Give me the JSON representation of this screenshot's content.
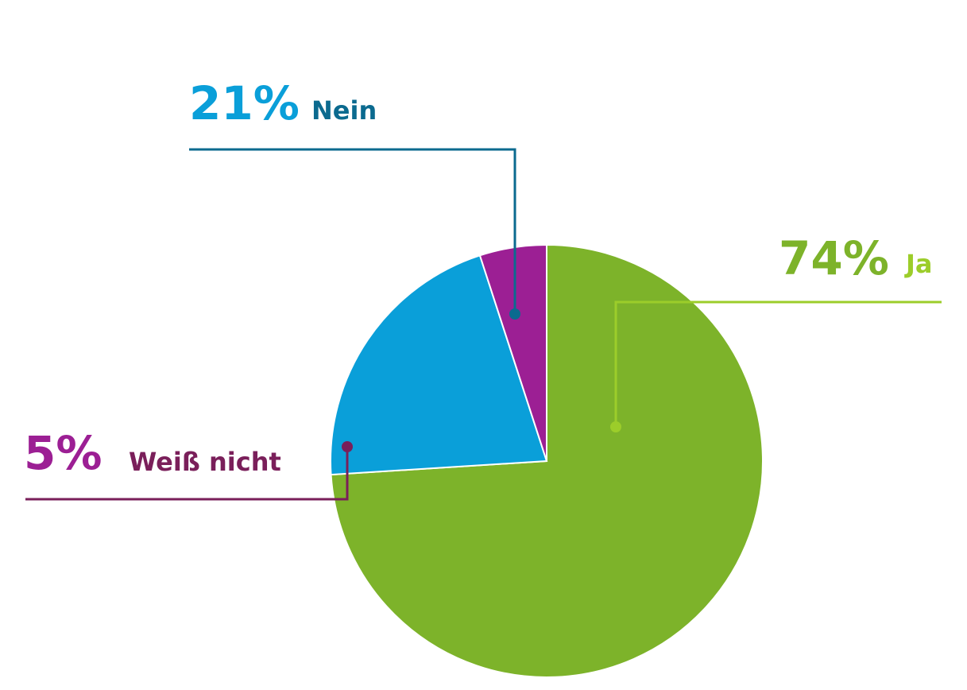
{
  "chart_data": {
    "type": "pie",
    "categories": [
      "Ja",
      "Nein",
      "Weiß nicht"
    ],
    "values": [
      74,
      21,
      5
    ],
    "value_labels": [
      "74%",
      "21%",
      "5%"
    ],
    "colors": [
      "#7db32a",
      "#0a9fd9",
      "#9c1f94"
    ],
    "label_colors": [
      "#9ccd2a",
      "#0b6a8f",
      "#7a1f5a"
    ]
  }
}
